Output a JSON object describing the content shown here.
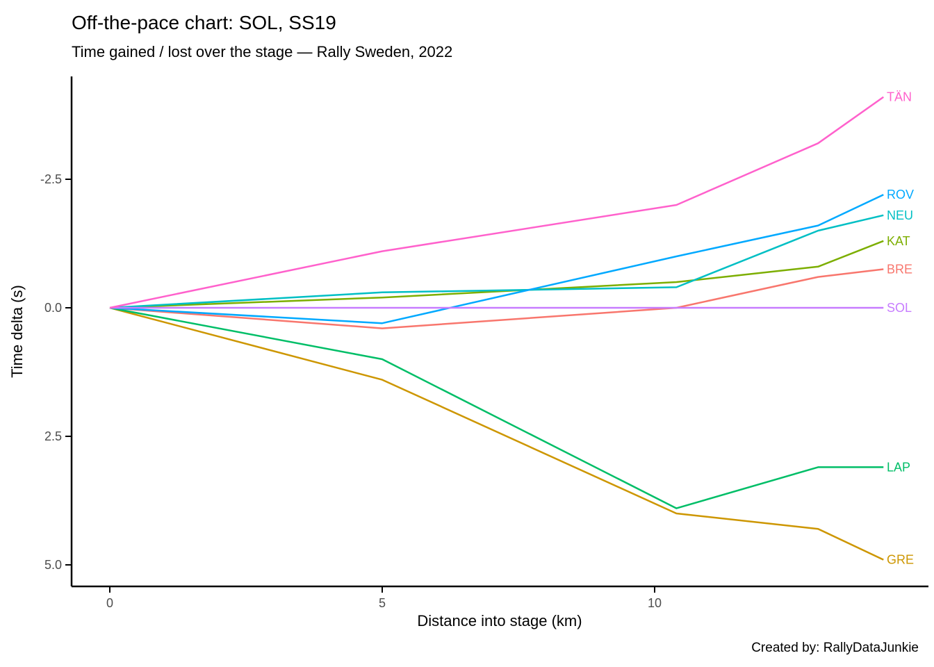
{
  "caption": "Created by: RallyDataJunkie",
  "chart_data": {
    "type": "line",
    "title": "Off-the-pace chart: SOL, SS19",
    "subtitle": "Time gained / lost over the stage — Rally Sweden, 2022",
    "xlabel": "Distance into stage (km)",
    "ylabel": "Time delta (s)",
    "x": [
      0,
      5,
      10.4,
      13,
      14.2
    ],
    "x_ticks": [
      0,
      5,
      10
    ],
    "x_tick_labels": [
      "0",
      "5",
      "10"
    ],
    "y_ticks": [
      -2.5,
      0.0,
      2.5,
      5.0
    ],
    "y_tick_labels": [
      "-2.5",
      "0.0",
      "2.5",
      "5.0"
    ],
    "xlim": [
      -0.7,
      15.0
    ],
    "ylim": [
      5.4,
      -4.5
    ],
    "y_axis_reversed": true,
    "grid": false,
    "legend_position": "direct-labels-at-line-ends",
    "axis_color": "#000000",
    "tick_text_color": "#4d4d4d",
    "series": [
      {
        "name": "BRE",
        "color": "#F8766D",
        "values": [
          0,
          0.4,
          0.0,
          -0.6,
          -0.75
        ]
      },
      {
        "name": "GRE",
        "color": "#CD9600",
        "values": [
          0,
          1.4,
          4.0,
          4.3,
          4.9
        ]
      },
      {
        "name": "KAT",
        "color": "#7CAE00",
        "values": [
          0,
          -0.2,
          -0.5,
          -0.8,
          -1.3
        ]
      },
      {
        "name": "LAP",
        "color": "#00BE67",
        "values": [
          0,
          1.0,
          3.9,
          3.1,
          3.1
        ]
      },
      {
        "name": "NEU",
        "color": "#00BFC4",
        "values": [
          0,
          -0.3,
          -0.4,
          -1.5,
          -1.8
        ]
      },
      {
        "name": "ROV",
        "color": "#00A9FF",
        "values": [
          0,
          0.3,
          -1.0,
          -1.6,
          -2.2
        ]
      },
      {
        "name": "SOL",
        "color": "#C77CFF",
        "values": [
          0,
          0.0,
          0.0,
          0.0,
          0.0
        ]
      },
      {
        "name": "TÄN",
        "color": "#FF61CC",
        "values": [
          0,
          -1.1,
          -2.0,
          -3.2,
          -4.1
        ]
      }
    ]
  }
}
